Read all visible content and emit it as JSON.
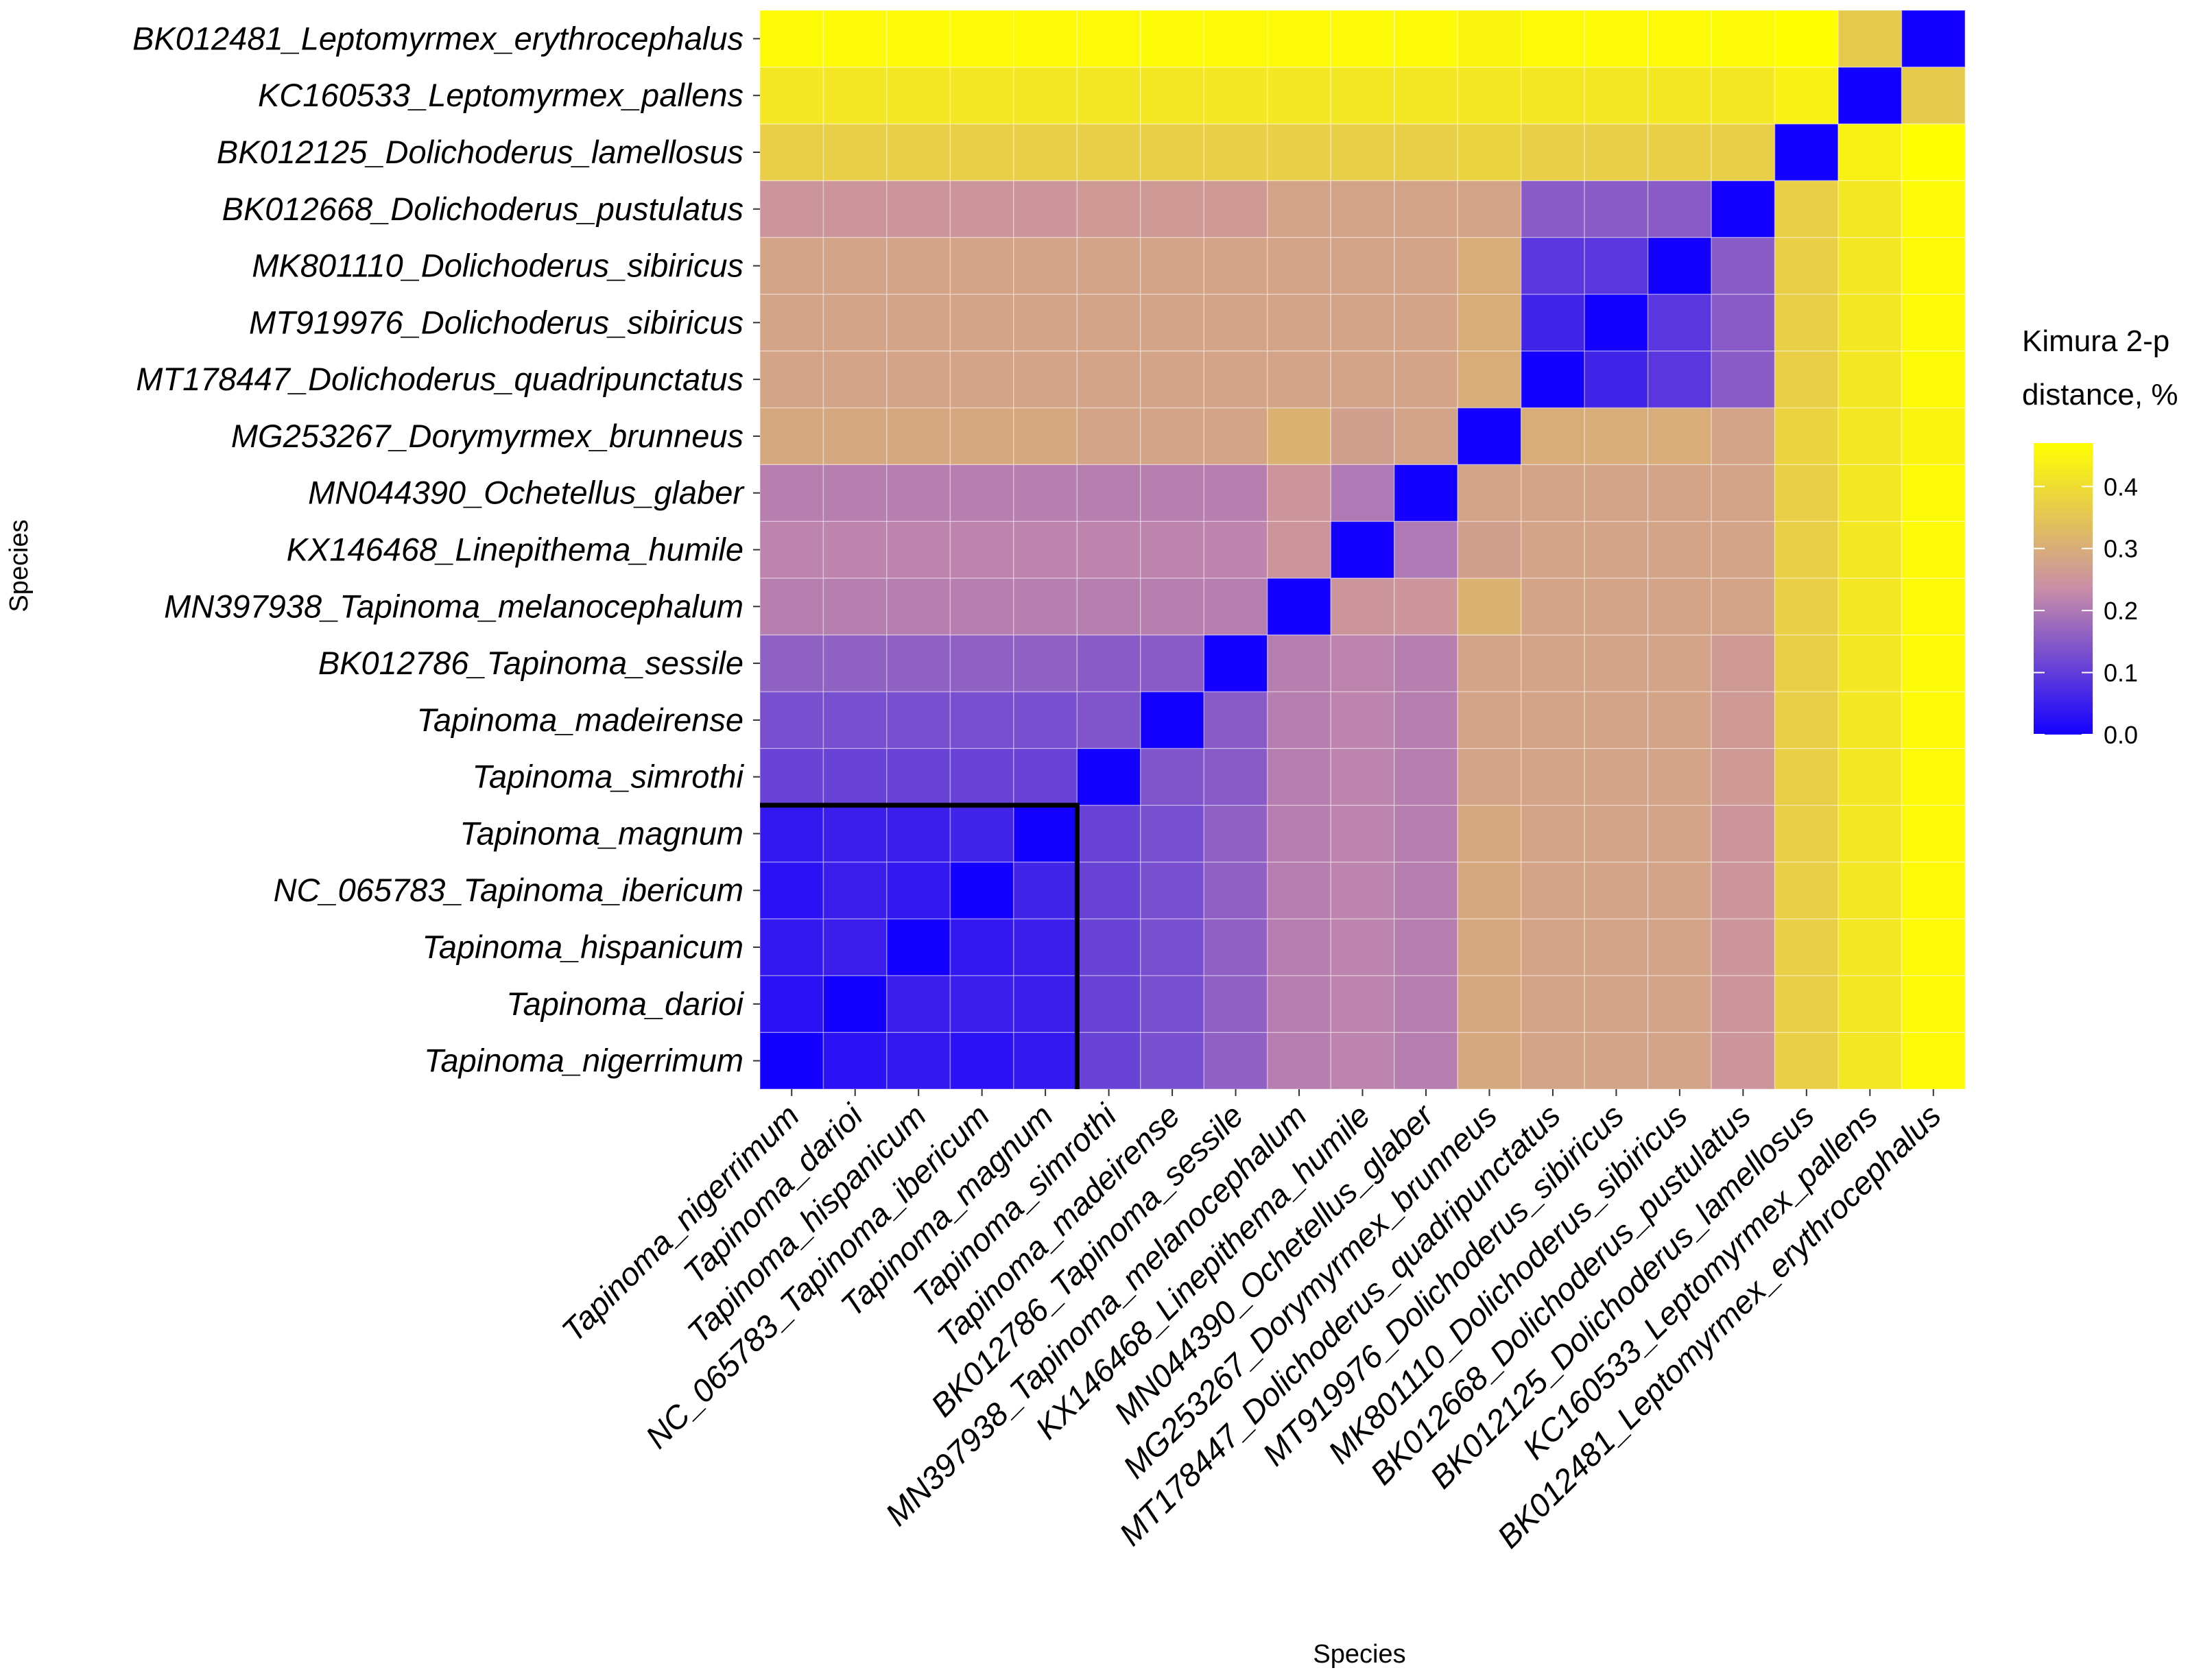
{
  "chart_data": {
    "type": "heatmap",
    "xlabel": "Species",
    "ylabel": "Species",
    "species": [
      "Tapinoma_nigerrimum",
      "Tapinoma_darioi",
      "Tapinoma_hispanicum",
      "NC_065783_Tapinoma_ibericum",
      "Tapinoma_magnum",
      "Tapinoma_simrothi",
      "Tapinoma_madeirense",
      "BK012786_Tapinoma_sessile",
      "MN397938_Tapinoma_melanocephalum",
      "KX146468_Linepithema_humile",
      "MN044390_Ochetellus_glaber",
      "MG253267_Dorymyrmex_brunneus",
      "MT178447_Dolichoderus_quadripunctatus",
      "MT919976_Dolichoderus_sibiricus",
      "MK801110_Dolichoderus_sibiricus",
      "BK012668_Dolichoderus_pustulatus",
      "BK012125_Dolichoderus_lamellosus",
      "KC160533_Leptomyrmex_pallens",
      "BK012481_Leptomyrmex_erythrocephalus"
    ],
    "matrix": [
      [
        0.0,
        0.03,
        0.04,
        0.03,
        0.04,
        0.11,
        0.13,
        0.16,
        0.21,
        0.22,
        0.21,
        0.29,
        0.28,
        0.28,
        0.28,
        0.25,
        0.37,
        0.42,
        0.46
      ],
      [
        0.03,
        0.0,
        0.05,
        0.05,
        0.05,
        0.11,
        0.13,
        0.16,
        0.21,
        0.22,
        0.21,
        0.29,
        0.28,
        0.28,
        0.28,
        0.25,
        0.37,
        0.42,
        0.46
      ],
      [
        0.04,
        0.05,
        0.0,
        0.04,
        0.05,
        0.11,
        0.13,
        0.16,
        0.21,
        0.22,
        0.21,
        0.29,
        0.28,
        0.28,
        0.28,
        0.25,
        0.37,
        0.42,
        0.46
      ],
      [
        0.03,
        0.05,
        0.04,
        0.0,
        0.06,
        0.11,
        0.13,
        0.16,
        0.21,
        0.22,
        0.21,
        0.29,
        0.28,
        0.28,
        0.28,
        0.25,
        0.37,
        0.42,
        0.46
      ],
      [
        0.04,
        0.05,
        0.05,
        0.06,
        0.0,
        0.11,
        0.13,
        0.16,
        0.21,
        0.22,
        0.21,
        0.29,
        0.28,
        0.28,
        0.28,
        0.25,
        0.37,
        0.42,
        0.46
      ],
      [
        0.11,
        0.11,
        0.11,
        0.11,
        0.11,
        0.0,
        0.14,
        0.15,
        0.21,
        0.22,
        0.21,
        0.28,
        0.28,
        0.28,
        0.28,
        0.26,
        0.37,
        0.42,
        0.46
      ],
      [
        0.13,
        0.13,
        0.13,
        0.13,
        0.13,
        0.14,
        0.0,
        0.15,
        0.21,
        0.22,
        0.21,
        0.28,
        0.28,
        0.28,
        0.28,
        0.26,
        0.37,
        0.42,
        0.46
      ],
      [
        0.16,
        0.16,
        0.16,
        0.16,
        0.16,
        0.15,
        0.15,
        0.0,
        0.21,
        0.22,
        0.21,
        0.28,
        0.28,
        0.28,
        0.28,
        0.26,
        0.37,
        0.42,
        0.46
      ],
      [
        0.21,
        0.21,
        0.21,
        0.21,
        0.21,
        0.21,
        0.21,
        0.21,
        0.0,
        0.25,
        0.25,
        0.31,
        0.28,
        0.28,
        0.28,
        0.28,
        0.37,
        0.42,
        0.46
      ],
      [
        0.22,
        0.22,
        0.22,
        0.22,
        0.22,
        0.22,
        0.22,
        0.22,
        0.25,
        0.0,
        0.2,
        0.27,
        0.28,
        0.28,
        0.28,
        0.28,
        0.37,
        0.42,
        0.46
      ],
      [
        0.21,
        0.21,
        0.21,
        0.21,
        0.21,
        0.21,
        0.21,
        0.21,
        0.25,
        0.2,
        0.0,
        0.28,
        0.28,
        0.28,
        0.28,
        0.28,
        0.37,
        0.42,
        0.46
      ],
      [
        0.29,
        0.29,
        0.29,
        0.29,
        0.29,
        0.28,
        0.28,
        0.28,
        0.31,
        0.27,
        0.28,
        0.0,
        0.3,
        0.3,
        0.3,
        0.28,
        0.38,
        0.42,
        0.45
      ],
      [
        0.28,
        0.28,
        0.28,
        0.28,
        0.28,
        0.28,
        0.28,
        0.28,
        0.28,
        0.28,
        0.28,
        0.3,
        0.0,
        0.06,
        0.09,
        0.15,
        0.37,
        0.42,
        0.46
      ],
      [
        0.28,
        0.28,
        0.28,
        0.28,
        0.28,
        0.28,
        0.28,
        0.28,
        0.28,
        0.28,
        0.28,
        0.3,
        0.06,
        0.0,
        0.09,
        0.15,
        0.37,
        0.42,
        0.46
      ],
      [
        0.28,
        0.28,
        0.28,
        0.28,
        0.28,
        0.28,
        0.28,
        0.28,
        0.28,
        0.28,
        0.28,
        0.3,
        0.09,
        0.09,
        0.0,
        0.15,
        0.37,
        0.42,
        0.46
      ],
      [
        0.25,
        0.25,
        0.25,
        0.25,
        0.25,
        0.26,
        0.26,
        0.26,
        0.28,
        0.28,
        0.28,
        0.28,
        0.15,
        0.15,
        0.15,
        0.0,
        0.37,
        0.42,
        0.46
      ],
      [
        0.37,
        0.37,
        0.37,
        0.37,
        0.37,
        0.37,
        0.37,
        0.37,
        0.37,
        0.37,
        0.37,
        0.38,
        0.37,
        0.37,
        0.37,
        0.37,
        0.0,
        0.44,
        0.48
      ],
      [
        0.42,
        0.42,
        0.42,
        0.42,
        0.42,
        0.42,
        0.42,
        0.42,
        0.42,
        0.42,
        0.42,
        0.42,
        0.42,
        0.42,
        0.42,
        0.42,
        0.44,
        0.0,
        0.36
      ],
      [
        0.46,
        0.46,
        0.46,
        0.46,
        0.46,
        0.46,
        0.46,
        0.46,
        0.46,
        0.46,
        0.46,
        0.45,
        0.46,
        0.46,
        0.46,
        0.46,
        0.48,
        0.36,
        0.0
      ]
    ],
    "highlight_block": {
      "from": "Tapinoma_nigerrimum",
      "to": "Tapinoma_magnum"
    },
    "legend": {
      "title_lines": [
        "Kimura 2-p",
        "distance, %"
      ],
      "ticks": [
        0.0,
        0.1,
        0.2,
        0.3,
        0.4
      ],
      "tick_labels": [
        "0.0",
        "0.1",
        "0.2",
        "0.3",
        "0.4"
      ],
      "range": [
        0,
        0.47
      ],
      "low_color": "#1400ff",
      "mid_color": "#c98ea7",
      "high_color": "#ffff00"
    }
  }
}
